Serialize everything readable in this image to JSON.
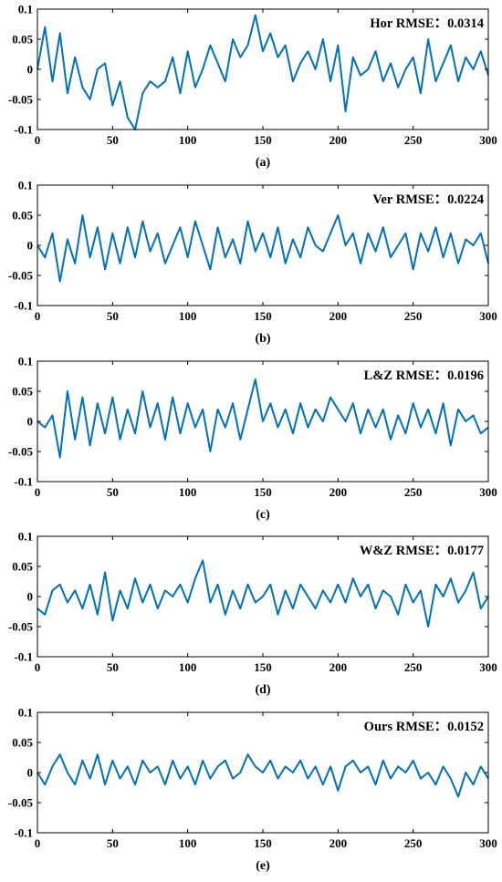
{
  "line_color": "#0072BD",
  "chart_data": [
    {
      "type": "line",
      "caption": "(a)",
      "annotation": "Hor RMSE：0.0314",
      "xlim": [
        0,
        300
      ],
      "ylim": [
        -0.1,
        0.1
      ],
      "xticks": [
        "0",
        "50",
        "100",
        "150",
        "200",
        "250",
        "300"
      ],
      "yticks": [
        "0.1",
        "0.05",
        "0",
        "-0.05",
        "-0.1"
      ],
      "grid": false,
      "x": [
        0,
        5,
        10,
        15,
        20,
        25,
        30,
        35,
        40,
        45,
        50,
        55,
        60,
        65,
        70,
        75,
        80,
        85,
        90,
        95,
        100,
        105,
        110,
        115,
        120,
        125,
        130,
        135,
        140,
        145,
        150,
        155,
        160,
        165,
        170,
        175,
        180,
        185,
        190,
        195,
        200,
        205,
        210,
        215,
        220,
        225,
        230,
        235,
        240,
        245,
        250,
        255,
        260,
        265,
        270,
        275,
        280,
        285,
        290,
        295,
        300
      ],
      "series": [
        {
          "values": [
            0.0,
            0.07,
            -0.02,
            0.06,
            -0.04,
            0.02,
            -0.03,
            -0.05,
            0.0,
            0.01,
            -0.06,
            -0.02,
            -0.08,
            -0.1,
            -0.04,
            -0.02,
            -0.03,
            -0.02,
            0.02,
            -0.04,
            0.03,
            -0.03,
            0.0,
            0.04,
            0.01,
            -0.02,
            0.05,
            0.02,
            0.04,
            0.09,
            0.03,
            0.06,
            0.02,
            0.04,
            -0.02,
            0.01,
            0.03,
            0.0,
            0.05,
            -0.02,
            0.04,
            -0.07,
            0.02,
            -0.01,
            0.0,
            0.03,
            -0.02,
            0.01,
            -0.03,
            0.0,
            0.02,
            -0.04,
            0.05,
            -0.02,
            0.01,
            0.04,
            -0.02,
            0.02,
            0.0,
            0.03,
            -0.01
          ]
        }
      ]
    },
    {
      "type": "line",
      "caption": "(b)",
      "annotation": "Ver RMSE：0.0224",
      "xlim": [
        0,
        300
      ],
      "ylim": [
        -0.1,
        0.1
      ],
      "xticks": [
        "0",
        "50",
        "100",
        "150",
        "200",
        "250",
        "300"
      ],
      "yticks": [
        "0.1",
        "0.05",
        "0",
        "-0.05",
        "-0.1"
      ],
      "grid": false,
      "x": [
        0,
        5,
        10,
        15,
        20,
        25,
        30,
        35,
        40,
        45,
        50,
        55,
        60,
        65,
        70,
        75,
        80,
        85,
        90,
        95,
        100,
        105,
        110,
        115,
        120,
        125,
        130,
        135,
        140,
        145,
        150,
        155,
        160,
        165,
        170,
        175,
        180,
        185,
        190,
        195,
        200,
        205,
        210,
        215,
        220,
        225,
        230,
        235,
        240,
        245,
        250,
        255,
        260,
        265,
        270,
        275,
        280,
        285,
        290,
        295,
        300
      ],
      "series": [
        {
          "values": [
            0.0,
            -0.02,
            0.02,
            -0.06,
            0.01,
            -0.03,
            0.05,
            -0.02,
            0.03,
            -0.04,
            0.02,
            -0.03,
            0.03,
            -0.02,
            0.04,
            -0.01,
            0.02,
            -0.03,
            0.0,
            0.03,
            -0.02,
            0.04,
            0.0,
            -0.04,
            0.03,
            -0.02,
            0.01,
            -0.03,
            0.04,
            -0.01,
            0.02,
            -0.02,
            0.03,
            -0.03,
            0.01,
            -0.02,
            0.03,
            0.0,
            -0.01,
            0.02,
            0.05,
            0.0,
            0.02,
            -0.03,
            0.02,
            -0.01,
            0.03,
            -0.02,
            0.0,
            0.02,
            -0.04,
            0.02,
            -0.01,
            0.03,
            -0.02,
            0.02,
            -0.03,
            0.01,
            0.0,
            0.02,
            -0.03
          ]
        }
      ]
    },
    {
      "type": "line",
      "caption": "(c)",
      "annotation": "L&Z RMSE：0.0196",
      "xlim": [
        0,
        300
      ],
      "ylim": [
        -0.1,
        0.1
      ],
      "xticks": [
        "0",
        "50",
        "100",
        "150",
        "200",
        "250",
        "300"
      ],
      "yticks": [
        "0.1",
        "0.05",
        "0",
        "-0.05",
        "-0.1"
      ],
      "grid": false,
      "x": [
        0,
        5,
        10,
        15,
        20,
        25,
        30,
        35,
        40,
        45,
        50,
        55,
        60,
        65,
        70,
        75,
        80,
        85,
        90,
        95,
        100,
        105,
        110,
        115,
        120,
        125,
        130,
        135,
        140,
        145,
        150,
        155,
        160,
        165,
        170,
        175,
        180,
        185,
        190,
        195,
        200,
        205,
        210,
        215,
        220,
        225,
        230,
        235,
        240,
        245,
        250,
        255,
        260,
        265,
        270,
        275,
        280,
        285,
        290,
        295,
        300
      ],
      "series": [
        {
          "values": [
            0.0,
            -0.01,
            0.01,
            -0.06,
            0.05,
            -0.03,
            0.04,
            -0.04,
            0.03,
            -0.02,
            0.04,
            -0.03,
            0.02,
            -0.02,
            0.05,
            -0.01,
            0.03,
            -0.03,
            0.04,
            -0.02,
            0.03,
            -0.01,
            0.02,
            -0.05,
            0.02,
            -0.01,
            0.03,
            -0.03,
            0.02,
            0.07,
            0.0,
            0.03,
            -0.01,
            0.02,
            -0.02,
            0.03,
            -0.01,
            0.02,
            0.0,
            0.04,
            0.02,
            0.0,
            0.03,
            -0.02,
            0.02,
            -0.01,
            0.02,
            -0.03,
            0.01,
            -0.02,
            0.03,
            -0.01,
            0.02,
            -0.02,
            0.03,
            -0.04,
            0.02,
            0.0,
            0.01,
            -0.02,
            -0.01
          ]
        }
      ]
    },
    {
      "type": "line",
      "caption": "(d)",
      "annotation": "W&Z RMSE：0.0177",
      "xlim": [
        0,
        300
      ],
      "ylim": [
        -0.1,
        0.1
      ],
      "xticks": [
        "0",
        "50",
        "100",
        "150",
        "200",
        "250",
        "300"
      ],
      "yticks": [
        "0.1",
        "0.05",
        "0",
        "-0.05",
        "-0.1"
      ],
      "grid": false,
      "x": [
        0,
        5,
        10,
        15,
        20,
        25,
        30,
        35,
        40,
        45,
        50,
        55,
        60,
        65,
        70,
        75,
        80,
        85,
        90,
        95,
        100,
        105,
        110,
        115,
        120,
        125,
        130,
        135,
        140,
        145,
        150,
        155,
        160,
        165,
        170,
        175,
        180,
        185,
        190,
        195,
        200,
        205,
        210,
        215,
        220,
        225,
        230,
        235,
        240,
        245,
        250,
        255,
        260,
        265,
        270,
        275,
        280,
        285,
        290,
        295,
        300
      ],
      "series": [
        {
          "values": [
            -0.02,
            -0.03,
            0.01,
            0.02,
            -0.01,
            0.01,
            -0.02,
            0.02,
            -0.03,
            0.04,
            -0.04,
            0.01,
            -0.02,
            0.03,
            -0.01,
            0.02,
            -0.02,
            0.01,
            0.0,
            0.02,
            -0.01,
            0.03,
            0.06,
            -0.01,
            0.02,
            -0.03,
            0.01,
            -0.02,
            0.02,
            -0.01,
            0.0,
            0.02,
            -0.03,
            0.01,
            -0.02,
            0.02,
            0.0,
            -0.02,
            0.01,
            -0.01,
            0.02,
            -0.01,
            0.03,
            0.0,
            0.02,
            -0.02,
            0.01,
            0.0,
            -0.03,
            0.02,
            -0.01,
            0.01,
            -0.05,
            0.02,
            0.0,
            0.03,
            -0.01,
            0.01,
            0.04,
            -0.02,
            0.0
          ]
        }
      ]
    },
    {
      "type": "line",
      "caption": "(e)",
      "annotation": "Ours RMSE：0.0152",
      "xlim": [
        0,
        300
      ],
      "ylim": [
        -0.1,
        0.1
      ],
      "xticks": [
        "0",
        "50",
        "100",
        "150",
        "200",
        "250",
        "300"
      ],
      "yticks": [
        "0.1",
        "0.05",
        "0",
        "-0.05",
        "-0.1"
      ],
      "grid": false,
      "x": [
        0,
        5,
        10,
        15,
        20,
        25,
        30,
        35,
        40,
        45,
        50,
        55,
        60,
        65,
        70,
        75,
        80,
        85,
        90,
        95,
        100,
        105,
        110,
        115,
        120,
        125,
        130,
        135,
        140,
        145,
        150,
        155,
        160,
        165,
        170,
        175,
        180,
        185,
        190,
        195,
        200,
        205,
        210,
        215,
        220,
        225,
        230,
        235,
        240,
        245,
        250,
        255,
        260,
        265,
        270,
        275,
        280,
        285,
        290,
        295,
        300
      ],
      "series": [
        {
          "values": [
            0.0,
            -0.02,
            0.01,
            0.03,
            0.0,
            -0.02,
            0.02,
            -0.01,
            0.03,
            -0.02,
            0.02,
            -0.01,
            0.01,
            -0.02,
            0.02,
            0.0,
            0.01,
            -0.02,
            0.02,
            -0.01,
            0.01,
            -0.02,
            0.02,
            -0.01,
            0.01,
            0.02,
            -0.01,
            0.0,
            0.03,
            0.01,
            0.0,
            0.02,
            -0.01,
            0.01,
            0.0,
            0.02,
            -0.01,
            0.01,
            -0.02,
            0.01,
            -0.03,
            0.01,
            0.02,
            0.0,
            0.01,
            -0.02,
            0.02,
            -0.01,
            0.01,
            0.0,
            0.02,
            -0.01,
            0.0,
            -0.02,
            0.01,
            -0.01,
            -0.04,
            0.0,
            -0.02,
            0.01,
            -0.01
          ]
        }
      ]
    }
  ]
}
